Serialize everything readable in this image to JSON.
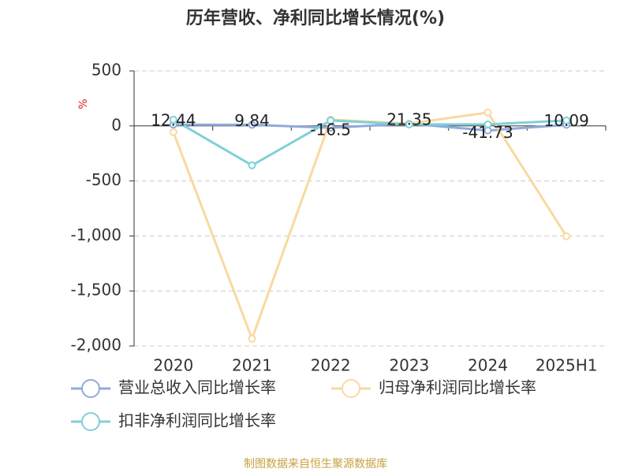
{
  "chart_data": {
    "type": "line",
    "title": "历年营收、净利同比增长情况(%)",
    "y_label": "%",
    "categories": [
      "2020",
      "2021",
      "2022",
      "2023",
      "2024",
      "2025H1"
    ],
    "series": [
      {
        "name": "营业总收入同比增长率",
        "color": "#8faadc",
        "values": [
          12.44,
          9.84,
          -16.5,
          21.35,
          -41.73,
          10.09
        ],
        "show_labels": true
      },
      {
        "name": "归母净利润同比增长率",
        "color": "#f9d9a0",
        "values": [
          -57,
          -1934,
          57,
          21,
          122,
          -1003
        ],
        "show_labels": false
      },
      {
        "name": "扣非净利润同比增长率",
        "color": "#80d0d8",
        "values": [
          57,
          -358,
          50,
          14,
          14,
          50
        ],
        "show_labels": false
      }
    ],
    "ylim": [
      -2000,
      500
    ],
    "yticks": [
      {
        "value": -2000,
        "label": "-2,000"
      },
      {
        "value": -1500,
        "label": "-1,500"
      },
      {
        "value": -1000,
        "label": "-1,000"
      },
      -500,
      0,
      500
    ],
    "grid": true,
    "source": "制图数据来自恒生聚源数据库"
  }
}
